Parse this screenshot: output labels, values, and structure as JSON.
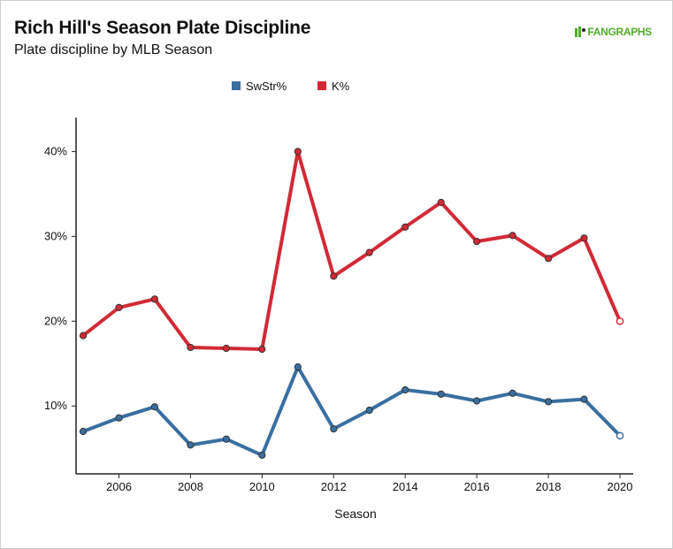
{
  "header": {
    "title": "Rich Hill's Season Plate Discipline",
    "subtitle": "Plate discipline by MLB Season",
    "logo_text": "FANGRAPHS"
  },
  "colors": {
    "swstr": "#3a6fa0",
    "k": "#d12a36",
    "logo": "#50ae26"
  },
  "chart_data": {
    "type": "line",
    "title": "Rich Hill's Season Plate Discipline",
    "subtitle": "Plate discipline by MLB Season",
    "xlabel": "Season",
    "ylabel": "",
    "xlim": [
      2005,
      2020
    ],
    "ylim": [
      2,
      44
    ],
    "x_ticks": [
      2006,
      2008,
      2010,
      2012,
      2014,
      2016,
      2018,
      2020
    ],
    "y_ticks": [
      10,
      20,
      30,
      40
    ],
    "y_tick_labels": [
      "10%",
      "20%",
      "30%",
      "40%"
    ],
    "grid": false,
    "legend": "top-center",
    "x": [
      2005,
      2006,
      2007,
      2008,
      2009,
      2010,
      2011,
      2012,
      2013,
      2014,
      2015,
      2016,
      2017,
      2018,
      2019,
      2020
    ],
    "series": [
      {
        "name": "SwStr%",
        "color": "#3a6fa0",
        "values": [
          7.0,
          8.6,
          9.9,
          5.4,
          6.1,
          4.2,
          14.6,
          7.3,
          9.5,
          11.9,
          11.4,
          10.6,
          11.5,
          10.5,
          10.8,
          6.5
        ]
      },
      {
        "name": "K%",
        "color": "#d12a36",
        "values": [
          18.3,
          21.6,
          22.6,
          16.9,
          16.8,
          16.7,
          40.0,
          25.3,
          28.1,
          31.1,
          34.0,
          29.4,
          30.1,
          27.4,
          29.8,
          20.0
        ]
      }
    ]
  }
}
